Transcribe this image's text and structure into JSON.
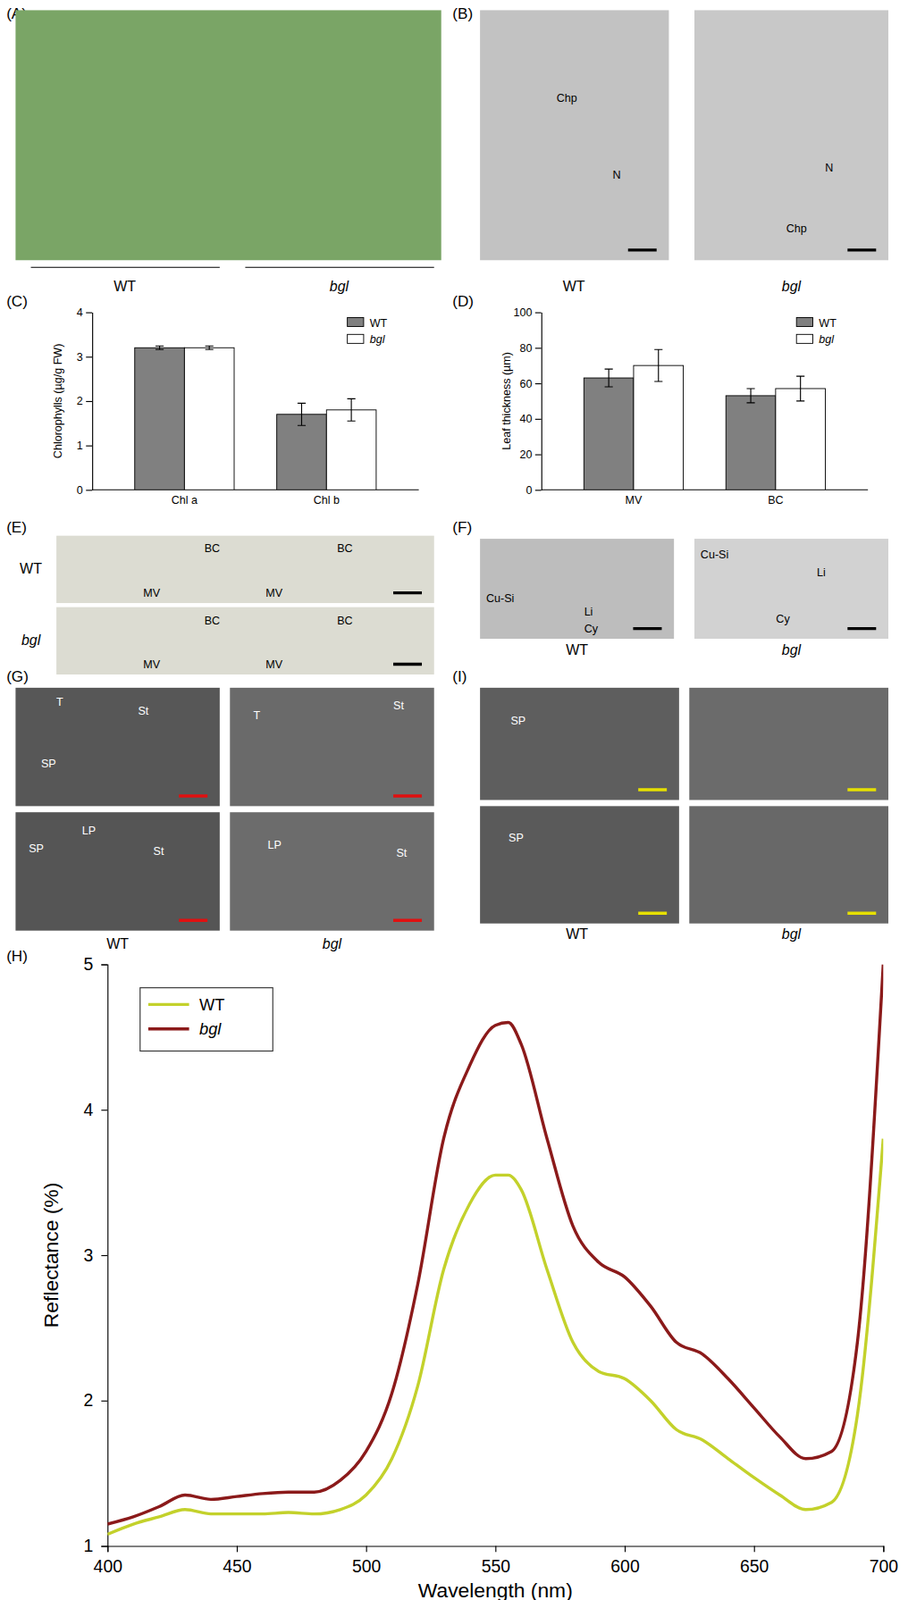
{
  "panels": [
    {
      "label": "(A)",
      "captions": [
        "WT",
        "bgl"
      ],
      "images": [
        {
          "annotations": []
        }
      ]
    },
    {
      "label": "(B)",
      "captions": [
        "WT",
        "bgl"
      ],
      "images": [
        {
          "annotations": [
            "Chp",
            "N"
          ]
        },
        {
          "annotations": [
            "N",
            "Chp"
          ]
        }
      ]
    },
    {
      "label": "(E)",
      "captions": [
        "WT",
        "bgl"
      ],
      "images": [
        {
          "annotations": [
            "BC",
            "BC",
            "MV",
            "MV"
          ]
        },
        {
          "annotations": [
            "BC",
            "BC",
            "MV",
            "MV"
          ]
        }
      ]
    },
    {
      "label": "(F)",
      "captions": [
        "WT",
        "bgl"
      ],
      "images": [
        {
          "annotations": [
            "Cu-Si",
            "Li",
            "Cy"
          ]
        },
        {
          "annotations": [
            "Cu-Si",
            "Li",
            "Cy"
          ]
        }
      ]
    },
    {
      "label": "(G)",
      "captions": [
        "WT",
        "bgl"
      ],
      "images": [
        {
          "annotations": [
            "T",
            "SP",
            "St"
          ]
        },
        {
          "annotations": [
            "T",
            "St"
          ]
        },
        {
          "annotations": [
            "SP",
            "LP",
            "St"
          ]
        },
        {
          "annotations": [
            "LP",
            "St"
          ]
        }
      ]
    },
    {
      "label": "(I)",
      "captions": [
        "WT",
        "bgl"
      ],
      "images": [
        {
          "annotations": [
            "SP"
          ]
        },
        {
          "annotations": []
        },
        {
          "annotations": [
            "SP"
          ]
        },
        {
          "annotations": []
        }
      ]
    }
  ],
  "chart_data": [
    {
      "type": "bar",
      "title": "(C)",
      "ylabel": "Chlorophylls (µg/g FW)",
      "categories": [
        "Chl a",
        "Chl b"
      ],
      "series": [
        {
          "name": "WT",
          "color": "#808080",
          "values": [
            3.2,
            1.7
          ],
          "errors": [
            0.04,
            0.25
          ]
        },
        {
          "name": "bgl",
          "color": "#ffffff",
          "values": [
            3.2,
            1.8
          ],
          "errors": [
            0.04,
            0.25
          ]
        }
      ],
      "ylim": [
        0,
        4
      ],
      "yticks": [
        0,
        1,
        2,
        3,
        4
      ],
      "legend": "upper right"
    },
    {
      "type": "bar",
      "title": "(D)",
      "ylabel": "Leaf thickness (µm)",
      "categories": [
        "MV",
        "BC"
      ],
      "series": [
        {
          "name": "WT",
          "color": "#808080",
          "values": [
            63,
            53
          ],
          "errors": [
            5,
            4
          ]
        },
        {
          "name": "bgl",
          "color": "#ffffff",
          "values": [
            70,
            57
          ],
          "errors": [
            9,
            7
          ]
        }
      ],
      "ylim": [
        0,
        100
      ],
      "yticks": [
        0,
        20,
        40,
        60,
        80,
        100
      ],
      "legend": "upper right"
    },
    {
      "type": "line",
      "title": "(H)",
      "xlabel": "Wavelength (nm)",
      "ylabel": "Reflectance (%)",
      "x": [
        400,
        410,
        420,
        430,
        440,
        450,
        460,
        470,
        480,
        490,
        500,
        510,
        520,
        530,
        540,
        550,
        555,
        560,
        570,
        580,
        590,
        600,
        610,
        620,
        630,
        640,
        650,
        660,
        670,
        680,
        690,
        700
      ],
      "series": [
        {
          "name": "WT",
          "color": "#c3d12b",
          "values": [
            1.08,
            1.15,
            1.2,
            1.25,
            1.22,
            1.22,
            1.22,
            1.23,
            1.22,
            1.25,
            1.35,
            1.6,
            2.1,
            2.9,
            3.35,
            3.55,
            3.55,
            3.45,
            2.9,
            2.4,
            2.2,
            2.15,
            2.0,
            1.8,
            1.73,
            1.6,
            1.47,
            1.35,
            1.25,
            1.3,
            1.9,
            3.8
          ]
        },
        {
          "name": "bgl",
          "color": "#8b1a1a",
          "values": [
            1.15,
            1.2,
            1.27,
            1.35,
            1.32,
            1.34,
            1.36,
            1.37,
            1.37,
            1.45,
            1.65,
            2.05,
            2.8,
            3.8,
            4.3,
            4.58,
            4.6,
            4.45,
            3.8,
            3.2,
            2.95,
            2.85,
            2.65,
            2.4,
            2.32,
            2.15,
            1.95,
            1.75,
            1.6,
            1.65,
            2.4,
            5.0
          ]
        }
      ],
      "xlim": [
        400,
        700
      ],
      "xticks": [
        400,
        450,
        500,
        550,
        600,
        650,
        700
      ],
      "ylim": [
        1,
        5
      ],
      "yticks": [
        1,
        2,
        3,
        4,
        5
      ],
      "legend": "upper left"
    }
  ]
}
